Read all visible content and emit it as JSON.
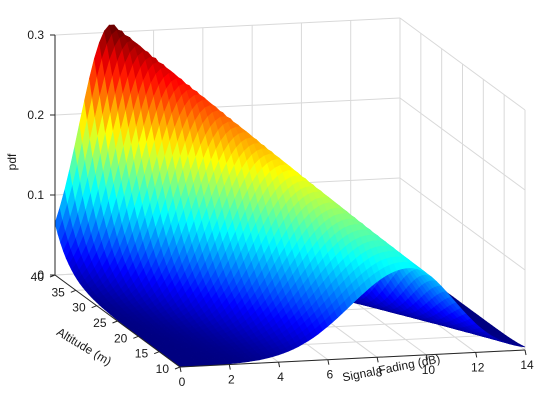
{
  "chart_data": {
    "type": "surface3d",
    "title": "",
    "x": {
      "label": "Signal Fading (dB)",
      "range": [
        0,
        14
      ],
      "ticks": [
        "0",
        "2",
        "4",
        "6",
        "8",
        "10",
        "12",
        "14"
      ]
    },
    "y": {
      "label": "Altitude (m)",
      "range": [
        10,
        40
      ],
      "ticks": [
        "10",
        "15",
        "20",
        "25",
        "30",
        "35",
        "40"
      ]
    },
    "z": {
      "label": "pdf",
      "range": [
        0,
        0.3
      ],
      "ticks": [
        "0",
        "0.1",
        "0.2",
        "0.3"
      ]
    },
    "grid": true,
    "colormap": "jet",
    "surface": {
      "description_values": [
        {
          "altitude": 10,
          "peak_fading_db": 9.3,
          "peak_pdf": 0.11,
          "spread_db": 1.9
        },
        {
          "altitude": 40,
          "peak_fading_db": 2.3,
          "peak_pdf": 0.31,
          "spread_db": 1.3
        }
      ]
    }
  }
}
